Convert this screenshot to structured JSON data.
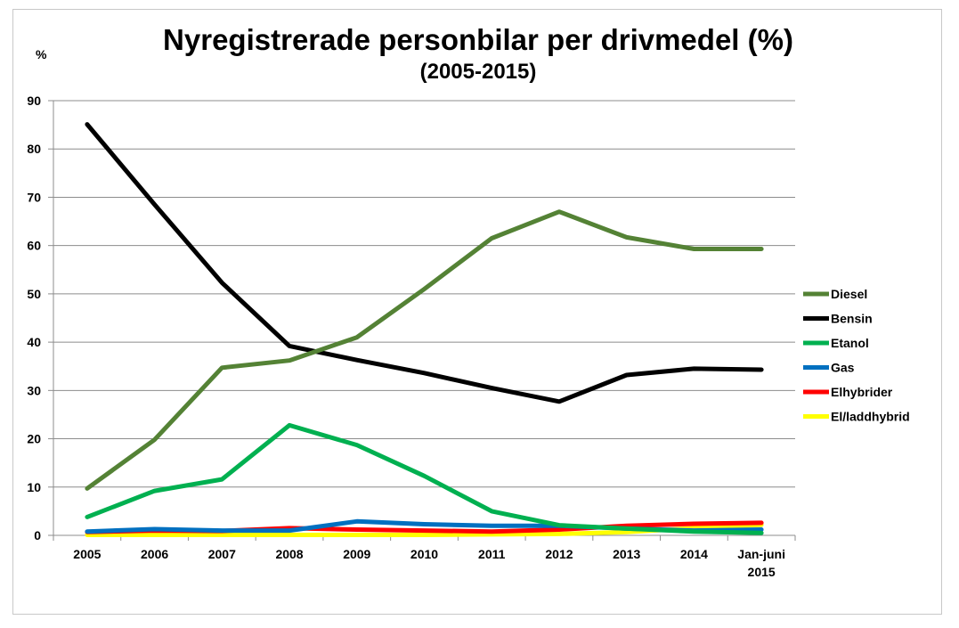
{
  "chart_data": {
    "type": "line",
    "title": "Nyregistrerade personbilar per drivmedel (%)",
    "subtitle": "(2005-2015)",
    "ylabel": "%",
    "xlabel": "",
    "categories": [
      [
        "2005"
      ],
      [
        "2006"
      ],
      [
        "2007"
      ],
      [
        "2008"
      ],
      [
        "2009"
      ],
      [
        "2010"
      ],
      [
        "2011"
      ],
      [
        "2012"
      ],
      [
        "2013"
      ],
      [
        "2014"
      ],
      [
        "Jan-juni",
        "2015"
      ]
    ],
    "ylim": [
      0,
      90
    ],
    "yticks": [
      0,
      10,
      20,
      30,
      40,
      50,
      60,
      70,
      80,
      90
    ],
    "grid": true,
    "legend_position": "right",
    "series": [
      {
        "name": "Diesel",
        "color": "#548235",
        "values": [
          9.7,
          19.8,
          34.7,
          36.2,
          41.0,
          51.0,
          61.5,
          67.0,
          61.7,
          59.3,
          59.3
        ]
      },
      {
        "name": "Bensin",
        "color": "#000000",
        "values": [
          85.1,
          68.5,
          52.3,
          39.2,
          36.3,
          33.6,
          30.5,
          27.7,
          33.2,
          34.5,
          34.3
        ]
      },
      {
        "name": "Etanol",
        "color": "#00b050",
        "values": [
          3.8,
          9.2,
          11.6,
          22.8,
          18.7,
          12.3,
          5.0,
          2.1,
          1.4,
          0.8,
          0.5
        ]
      },
      {
        "name": "Gas",
        "color": "#0070c0",
        "values": [
          0.8,
          1.3,
          1.0,
          1.0,
          2.9,
          2.3,
          2.0,
          2.0,
          1.4,
          1.0,
          1.2
        ]
      },
      {
        "name": "Elhybrider",
        "color": "#ff0000",
        "values": [
          0.7,
          1.0,
          0.9,
          1.5,
          1.2,
          1.0,
          0.8,
          1.2,
          2.0,
          2.4,
          2.6
        ]
      },
      {
        "name": "El/laddhybrid",
        "color": "#ffff00",
        "values": [
          0.1,
          0.1,
          0.1,
          0.1,
          0.1,
          0.1,
          0.2,
          0.3,
          0.7,
          1.5,
          2.2
        ]
      }
    ]
  }
}
